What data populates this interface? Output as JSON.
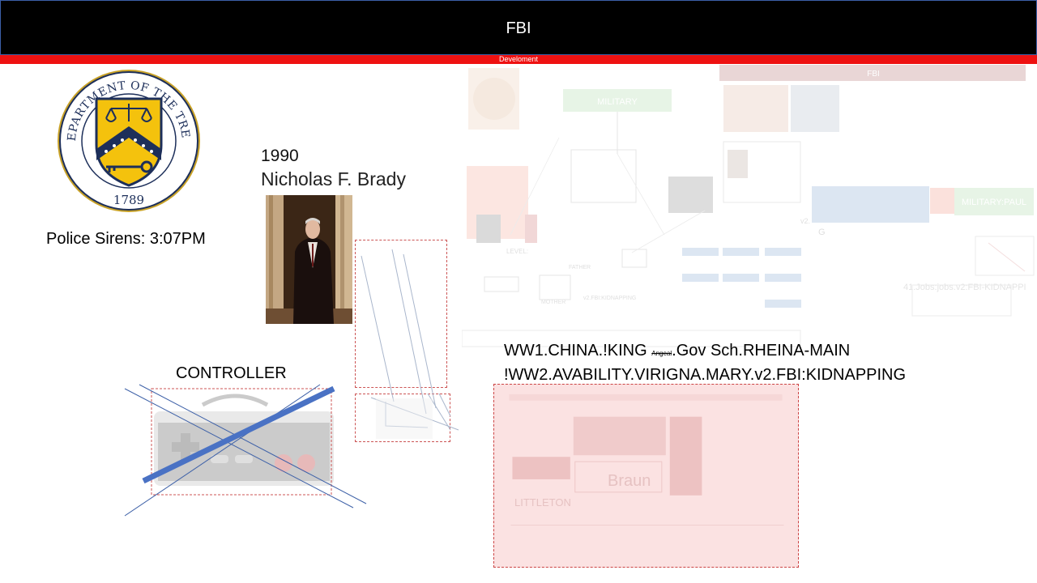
{
  "header": {
    "title": "FBI",
    "subtitle": "Develoment"
  },
  "seal": {
    "top_text": "THE DEPARTMENT OF THE TREASURY",
    "year": "1789"
  },
  "sirens": "Police Sirens: 3:07PM",
  "portrait": {
    "year": "1990",
    "name": "Nicholas F. Brady"
  },
  "caption1": {
    "pre": "WW1.CHINA.!KING ",
    "small": "Angeal",
    "post": ".Gov Sch.RHEINA-MAIN"
  },
  "caption2": "!WW2.AVABILITY.VIRIGNA.MARY.v2.FBI:KIDNAPPING",
  "controller_label": "CONTROLLER",
  "ghost": {
    "military": "MILITARY",
    "military_paul": "MILITARY:PAUL",
    "fbi": "FBI",
    "jobs": "41.Jobs:jobs.v2:FBI-KIDNAPPI",
    "level": "LEVEL:",
    "father": "FATHER",
    "mother": "MOTHER",
    "kidnapping": "v2.FBI:KIDNAPPING",
    "g": "G",
    "v2": "v2."
  },
  "pink": {
    "braun": "Braun",
    "litt": "LITTLETON"
  },
  "colors": {
    "header_bg": "#000000",
    "accent_red": "#ee1111",
    "controller_x": "#4472c4"
  }
}
